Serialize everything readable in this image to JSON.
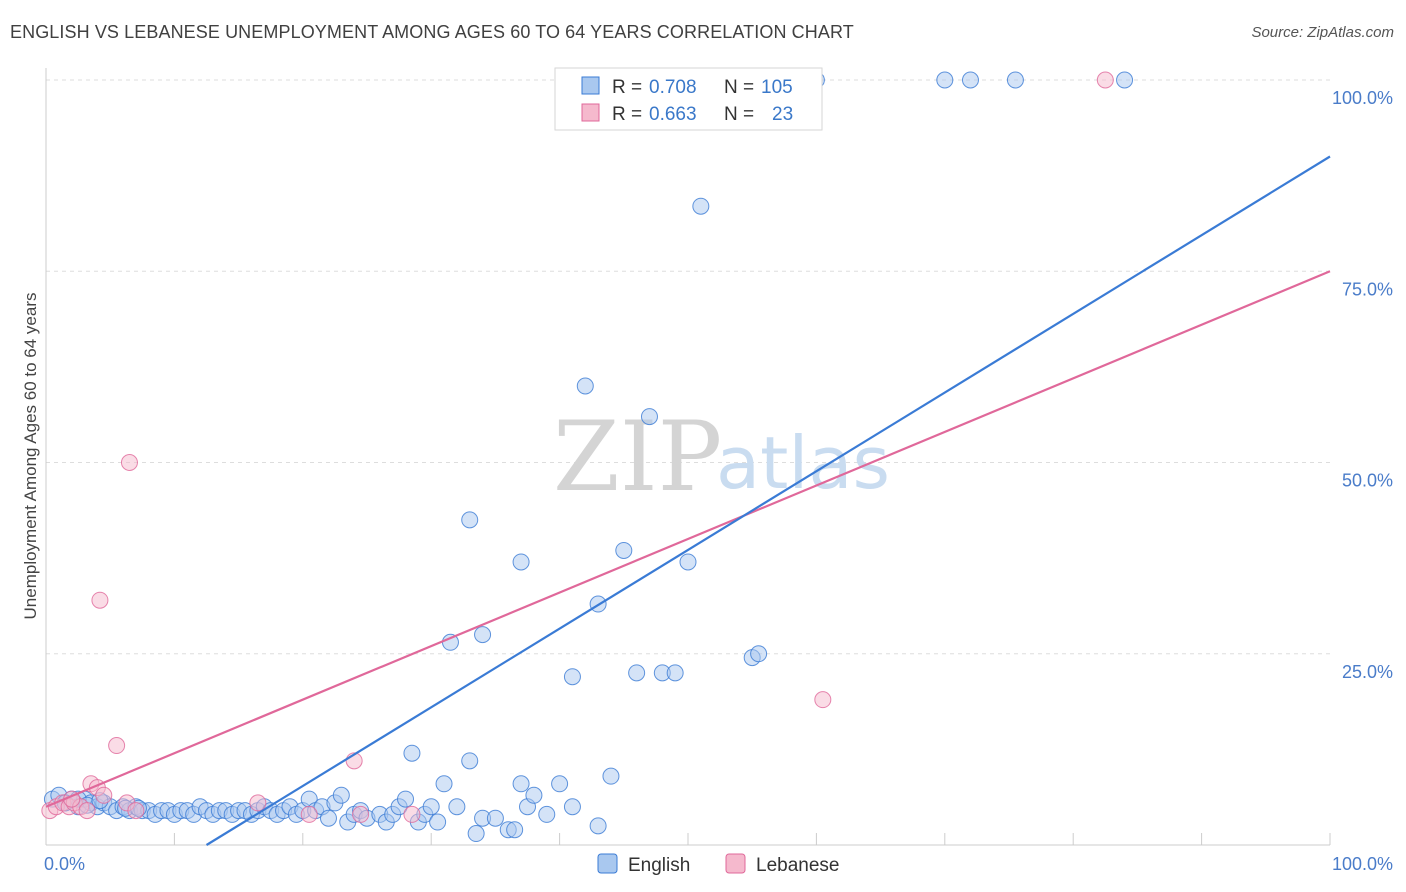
{
  "title": "ENGLISH VS LEBANESE UNEMPLOYMENT AMONG AGES 60 TO 64 YEARS CORRELATION CHART",
  "source": "Source: ZipAtlas.com",
  "watermark": {
    "zip": "ZIP",
    "atlas": "atlas"
  },
  "colors": {
    "english": "#3a7bd5",
    "english_fill": "#a9c8ef",
    "lebanese": "#e0689a",
    "lebanese_fill": "#f5b9cd"
  },
  "legend_top": {
    "rows": [
      {
        "r_label": "R =",
        "r_value": "0.708",
        "n_label": "N =",
        "n_value": "105"
      },
      {
        "r_label": "R =",
        "r_value": "0.663",
        "n_label": "N =",
        "n_value": "23"
      }
    ]
  },
  "legend_bottom": {
    "english": "English",
    "lebanese": "Lebanese"
  },
  "chart_data": {
    "type": "scatter",
    "title": "ENGLISH VS LEBANESE UNEMPLOYMENT AMONG AGES 60 TO 64 YEARS CORRELATION CHART",
    "xlabel": "",
    "ylabel": "Unemployment Among Ages 60 to 64 years",
    "xlim": [
      0,
      100
    ],
    "ylim": [
      0,
      100
    ],
    "x_tick_labels": [
      "0.0%",
      "100.0%"
    ],
    "y_tick_labels": [
      "25.0%",
      "50.0%",
      "75.0%",
      "100.0%"
    ],
    "y_ticks": [
      25,
      50,
      75,
      100
    ],
    "grid": true,
    "legend_position": "top-center",
    "series": [
      {
        "name": "English",
        "r": 0.708,
        "n": 105,
        "trend": {
          "x": [
            12.5,
            100
          ],
          "y": [
            0,
            90
          ]
        },
        "points": [
          [
            0.5,
            6
          ],
          [
            1,
            6.5
          ],
          [
            1.5,
            5.5
          ],
          [
            2,
            6
          ],
          [
            2.5,
            5
          ],
          [
            3,
            6
          ],
          [
            3.5,
            5.5
          ],
          [
            4,
            5
          ],
          [
            4.5,
            5.5
          ],
          [
            5,
            5
          ],
          [
            5.5,
            4.5
          ],
          [
            6,
            5
          ],
          [
            6.5,
            4.5
          ],
          [
            7,
            5
          ],
          [
            7.5,
            4.5
          ],
          [
            8,
            4.5
          ],
          [
            8.5,
            4
          ],
          [
            9,
            4.5
          ],
          [
            9.5,
            4.5
          ],
          [
            10,
            4
          ],
          [
            10.5,
            4.5
          ],
          [
            11,
            4.5
          ],
          [
            11.5,
            4
          ],
          [
            12,
            5
          ],
          [
            12.5,
            4.5
          ],
          [
            13,
            4
          ],
          [
            13.5,
            4.5
          ],
          [
            14,
            4.5
          ],
          [
            14.5,
            4
          ],
          [
            15,
            4.5
          ],
          [
            15.5,
            4.5
          ],
          [
            16,
            4
          ],
          [
            16.5,
            4.5
          ],
          [
            17,
            5
          ],
          [
            17.5,
            4.5
          ],
          [
            18,
            4
          ],
          [
            18.5,
            4.5
          ],
          [
            19,
            5
          ],
          [
            19.5,
            4
          ],
          [
            20,
            4.5
          ],
          [
            20.5,
            6
          ],
          [
            21,
            4.5
          ],
          [
            21.5,
            5
          ],
          [
            22,
            3.5
          ],
          [
            22.5,
            5.5
          ],
          [
            23,
            6.5
          ],
          [
            23.5,
            3
          ],
          [
            24,
            4
          ],
          [
            24.5,
            4.5
          ],
          [
            25,
            3.5
          ],
          [
            26,
            4
          ],
          [
            26.5,
            3
          ],
          [
            27,
            4
          ],
          [
            27.5,
            5
          ],
          [
            28,
            6
          ],
          [
            28.5,
            12
          ],
          [
            29,
            3
          ],
          [
            29.5,
            4
          ],
          [
            30,
            5
          ],
          [
            30.5,
            3
          ],
          [
            31,
            8
          ],
          [
            32,
            5
          ],
          [
            33,
            11
          ],
          [
            33.5,
            1.5
          ],
          [
            34,
            3.5
          ],
          [
            35,
            3.5
          ],
          [
            36,
            2
          ],
          [
            36.5,
            2
          ],
          [
            37,
            8
          ],
          [
            37.5,
            5
          ],
          [
            38,
            6.5
          ],
          [
            39,
            4
          ],
          [
            40,
            8
          ],
          [
            41,
            5
          ],
          [
            43,
            2.5
          ],
          [
            44,
            9
          ],
          [
            33,
            42.5
          ],
          [
            37,
            37
          ],
          [
            42,
            60
          ],
          [
            43,
            31.5
          ],
          [
            45,
            38.5
          ],
          [
            47,
            56
          ],
          [
            46,
            22.5
          ],
          [
            48,
            22.5
          ],
          [
            49,
            22.5
          ],
          [
            50,
            37
          ],
          [
            51,
            83.5
          ],
          [
            55,
            24.5
          ],
          [
            55.5,
            25
          ],
          [
            31.5,
            26.5
          ],
          [
            34,
            27.5
          ],
          [
            41,
            22
          ],
          [
            60,
            100
          ],
          [
            70,
            100
          ],
          [
            72,
            100
          ],
          [
            75.5,
            100
          ],
          [
            84,
            100
          ],
          [
            51,
            100
          ],
          [
            52,
            100
          ],
          [
            1.5,
            5.5
          ],
          [
            2.5,
            6
          ],
          [
            3.2,
            5.2
          ],
          [
            4.2,
            5.8
          ],
          [
            6.2,
            4.8
          ],
          [
            7.2,
            4.8
          ]
        ]
      },
      {
        "name": "Lebanese",
        "r": 0.663,
        "n": 23,
        "trend": {
          "x": [
            0,
            100
          ],
          "y": [
            5,
            75
          ]
        },
        "points": [
          [
            0.3,
            4.5
          ],
          [
            0.8,
            5
          ],
          [
            1.3,
            5.5
          ],
          [
            1.8,
            5
          ],
          [
            2.2,
            5.5
          ],
          [
            2.7,
            5
          ],
          [
            3.2,
            4.5
          ],
          [
            3.5,
            8
          ],
          [
            4,
            7.5
          ],
          [
            4.5,
            6.5
          ],
          [
            4.2,
            32
          ],
          [
            5.5,
            13
          ],
          [
            6.5,
            50
          ],
          [
            6.3,
            5.5
          ],
          [
            7,
            4.5
          ],
          [
            16.5,
            5.5
          ],
          [
            20.5,
            4
          ],
          [
            24,
            11
          ],
          [
            24.5,
            4
          ],
          [
            28.5,
            4
          ],
          [
            60.5,
            19
          ],
          [
            82.5,
            100
          ],
          [
            2,
            6
          ]
        ]
      }
    ]
  }
}
